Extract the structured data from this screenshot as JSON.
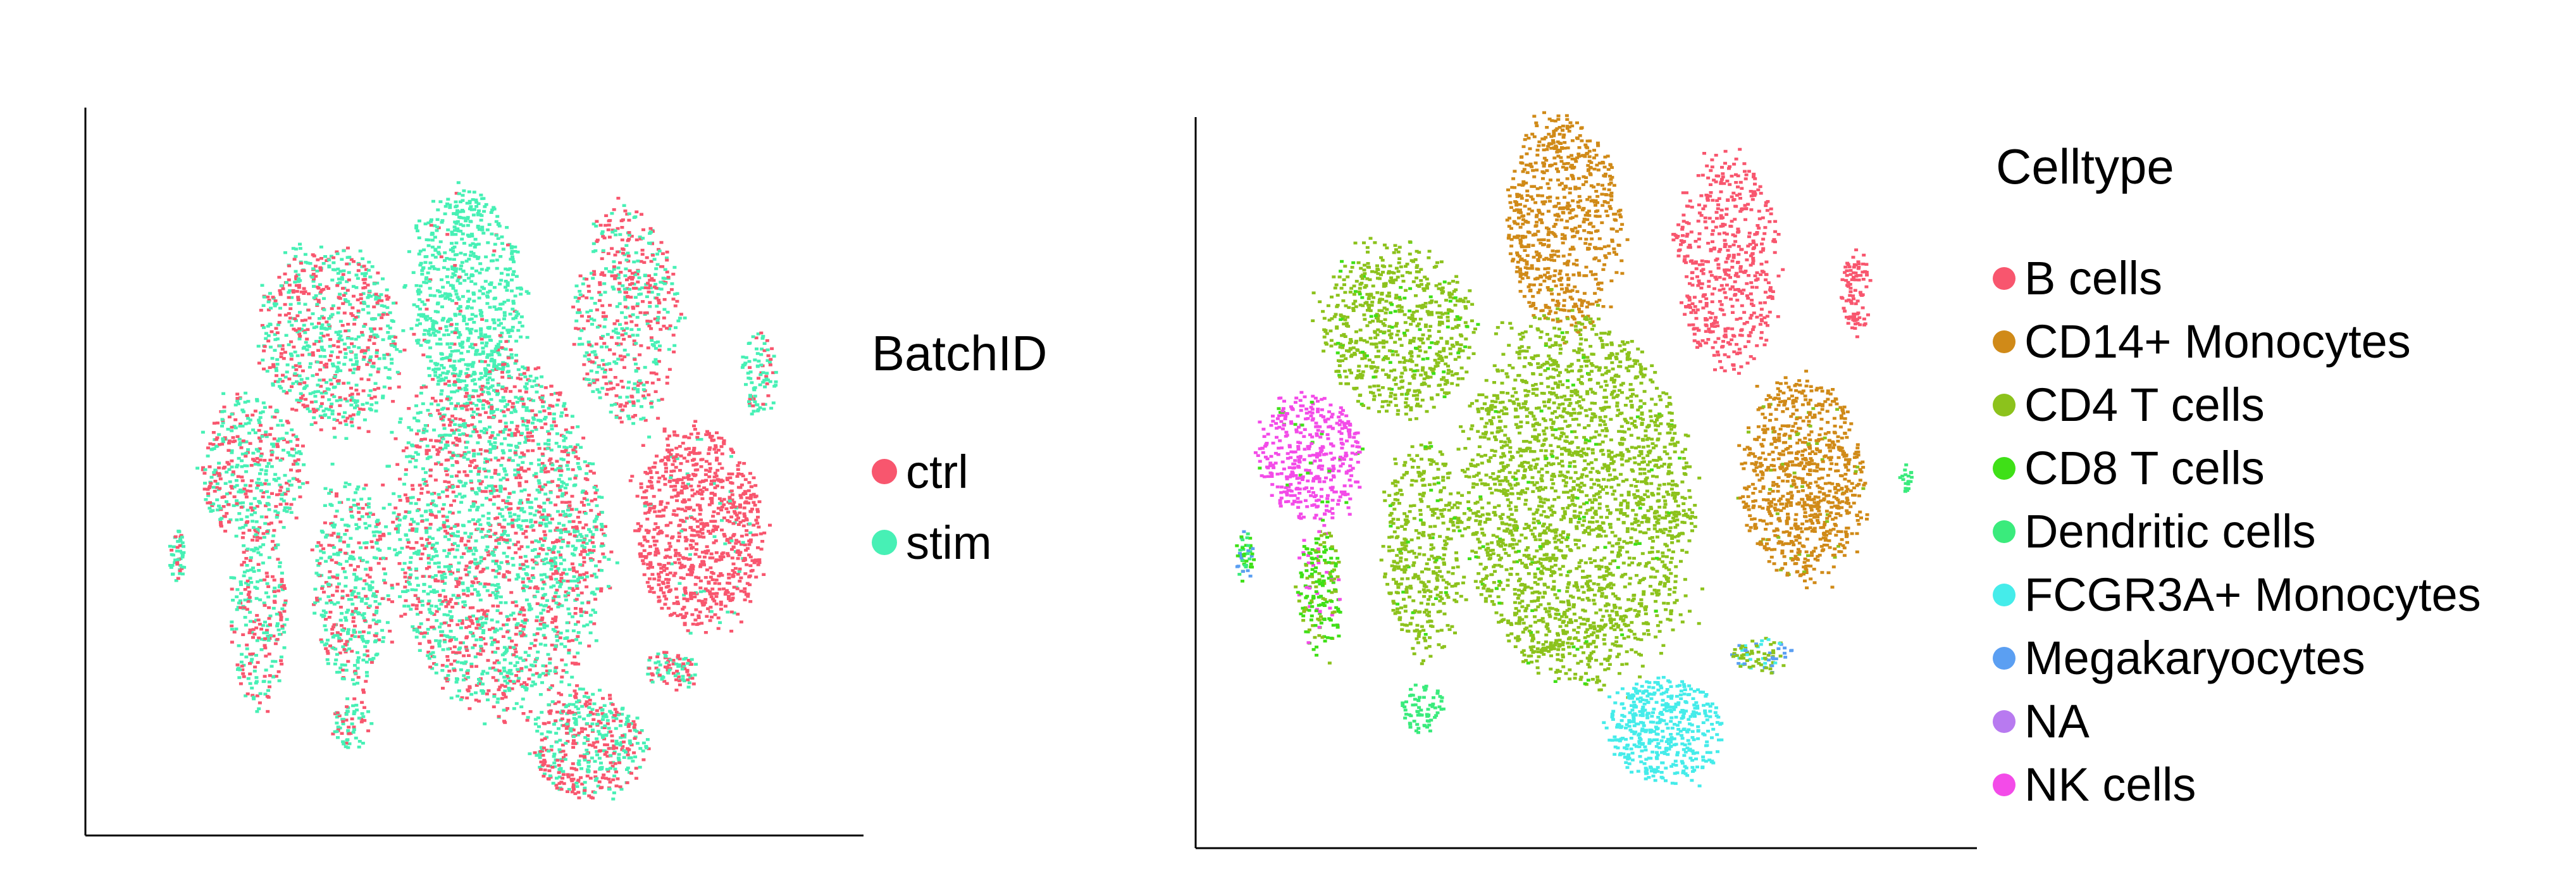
{
  "chart_data": [
    {
      "type": "scatter",
      "title": "",
      "xlabel": "",
      "ylabel": "",
      "legend": {
        "title": "BatchID",
        "placement": "right",
        "entries": [
          {
            "name": "ctrl",
            "color": "#F8566E"
          },
          {
            "name": "stim",
            "color": "#47F0B5"
          }
        ]
      },
      "grid": false,
      "clusters": [
        {
          "name": "",
          "center": [
            0.495,
            0.27
          ],
          "spread": [
            0.08,
            0.15
          ],
          "points": 700,
          "mix": {
            "stim": 0.96,
            "ctrl": 0.04
          }
        },
        {
          "name": "",
          "center": [
            0.3,
            0.325
          ],
          "spread": [
            0.1,
            0.13
          ],
          "points": 720,
          "mix": {
            "stim": 0.58,
            "ctrl": 0.42
          }
        },
        {
          "name": "",
          "center": [
            0.725,
            0.295
          ],
          "spread": [
            0.075,
            0.15
          ],
          "points": 520,
          "mix": {
            "stim": 0.48,
            "ctrl": 0.52
          }
        },
        {
          "name": "",
          "center": [
            0.915,
            0.38
          ],
          "spread": [
            0.025,
            0.06
          ],
          "points": 90,
          "mix": {
            "stim": 0.85,
            "ctrl": 0.15
          }
        },
        {
          "name": "",
          "center": [
            0.185,
            0.51
          ],
          "spread": [
            0.075,
            0.1
          ],
          "points": 420,
          "mix": {
            "stim": 0.55,
            "ctrl": 0.45
          }
        },
        {
          "name": "",
          "center": [
            0.54,
            0.605
          ],
          "spread": [
            0.15,
            0.25
          ],
          "points": 2200,
          "mix": {
            "stim": 0.58,
            "ctrl": 0.42
          }
        },
        {
          "name": "",
          "center": [
            0.83,
            0.6
          ],
          "spread": [
            0.09,
            0.14
          ],
          "points": 850,
          "mix": {
            "stim": 0.05,
            "ctrl": 0.95
          }
        },
        {
          "name": "",
          "center": [
            0.33,
            0.675
          ],
          "spread": [
            0.055,
            0.15
          ],
          "points": 420,
          "mix": {
            "stim": 0.62,
            "ctrl": 0.38
          }
        },
        {
          "name": "",
          "center": [
            0.195,
            0.72
          ],
          "spread": [
            0.04,
            0.13
          ],
          "points": 260,
          "mix": {
            "stim": 0.6,
            "ctrl": 0.4
          }
        },
        {
          "name": "",
          "center": [
            0.08,
            0.635
          ],
          "spread": [
            0.012,
            0.035
          ],
          "points": 50,
          "mix": {
            "stim": 0.85,
            "ctrl": 0.15
          }
        },
        {
          "name": "",
          "center": [
            0.79,
            0.8
          ],
          "spread": [
            0.04,
            0.025
          ],
          "points": 90,
          "mix": {
            "stim": 0.55,
            "ctrl": 0.45
          }
        },
        {
          "name": "",
          "center": [
            0.67,
            0.905
          ],
          "spread": [
            0.08,
            0.075
          ],
          "points": 450,
          "mix": {
            "stim": 0.55,
            "ctrl": 0.45
          }
        },
        {
          "name": "",
          "center": [
            0.33,
            0.875
          ],
          "spread": [
            0.028,
            0.035
          ],
          "points": 70,
          "mix": {
            "stim": 0.7,
            "ctrl": 0.3
          }
        }
      ]
    },
    {
      "type": "scatter",
      "title": "",
      "xlabel": "",
      "ylabel": "",
      "legend": {
        "title": "Celltype",
        "placement": "right",
        "entries": [
          {
            "name": "B cells",
            "color": "#F8566E"
          },
          {
            "name": "CD14+ Monocytes",
            "color": "#D08A18"
          },
          {
            "name": "CD4 T cells",
            "color": "#8CC21C"
          },
          {
            "name": "CD8 T cells",
            "color": "#3FE017"
          },
          {
            "name": "Dendritic cells",
            "color": "#3AEB7C"
          },
          {
            "name": "FCGR3A+ Monocytes",
            "color": "#45ECEA"
          },
          {
            "name": "Megakaryocytes",
            "color": "#5B9FF2"
          },
          {
            "name": "NA",
            "color": "#B87AF0"
          },
          {
            "name": "NK cells",
            "color": "#F34BE8"
          }
        ]
      },
      "grid": false,
      "clusters": [
        {
          "name": "",
          "center": [
            0.485,
            0.17
          ],
          "spread": [
            0.08,
            0.15
          ],
          "points": 700,
          "mix": {
            "CD14+ Monocytes": 1.0
          }
        },
        {
          "name": "",
          "center": [
            0.255,
            0.32
          ],
          "spread": [
            0.105,
            0.12
          ],
          "points": 700,
          "mix": {
            "CD4 T cells": 0.92,
            "CD8 T cells": 0.08
          }
        },
        {
          "name": "",
          "center": [
            0.715,
            0.225
          ],
          "spread": [
            0.07,
            0.15
          ],
          "points": 520,
          "mix": {
            "B cells": 1.0
          }
        },
        {
          "name": "",
          "center": [
            0.895,
            0.265
          ],
          "spread": [
            0.02,
            0.06
          ],
          "points": 90,
          "mix": {
            "B cells": 1.0
          }
        },
        {
          "name": "",
          "center": [
            0.13,
            0.5
          ],
          "spread": [
            0.07,
            0.09
          ],
          "points": 420,
          "mix": {
            "NK cells": 0.95,
            "CD8 T cells": 0.05
          }
        },
        {
          "name": "",
          "center": [
            0.145,
            0.69
          ],
          "spread": [
            0.03,
            0.09
          ],
          "points": 200,
          "mix": {
            "CD8 T cells": 0.55,
            "CD4 T cells": 0.3,
            "NK cells": 0.15
          }
        },
        {
          "name": "",
          "center": [
            0.505,
            0.56
          ],
          "spread": [
            0.155,
            0.255
          ],
          "points": 2300,
          "mix": {
            "CD4 T cells": 0.97,
            "CD8 T cells": 0.03
          }
        },
        {
          "name": "",
          "center": [
            0.82,
            0.53
          ],
          "spread": [
            0.085,
            0.14
          ],
          "points": 820,
          "mix": {
            "CD14+ Monocytes": 0.95,
            "CD4 T cells": 0.05
          }
        },
        {
          "name": "",
          "center": [
            0.29,
            0.63
          ],
          "spread": [
            0.055,
            0.15
          ],
          "points": 420,
          "mix": {
            "CD4 T cells": 0.95,
            "CD8 T cells": 0.05
          }
        },
        {
          "name": "",
          "center": [
            0.04,
            0.64
          ],
          "spread": [
            0.012,
            0.035
          ],
          "points": 50,
          "mix": {
            "CD8 T cells": 0.5,
            "Dendritic cells": 0.3,
            "Megakaryocytes": 0.2
          }
        },
        {
          "name": "",
          "center": [
            0.765,
            0.78
          ],
          "spread": [
            0.04,
            0.025
          ],
          "points": 90,
          "mix": {
            "CD4 T cells": 0.5,
            "Megakaryocytes": 0.3,
            "FCGR3A+ Monocytes": 0.2
          }
        },
        {
          "name": "",
          "center": [
            0.63,
            0.885
          ],
          "spread": [
            0.08,
            0.075
          ],
          "points": 450,
          "mix": {
            "FCGR3A+ Monocytes": 1.0
          }
        },
        {
          "name": "",
          "center": [
            0.29,
            0.855
          ],
          "spread": [
            0.03,
            0.035
          ],
          "points": 70,
          "mix": {
            "Dendritic cells": 1.0
          }
        },
        {
          "name": "",
          "center": [
            0.965,
            0.53
          ],
          "spread": [
            0.01,
            0.02
          ],
          "points": 20,
          "mix": {
            "Dendritic cells": 1.0
          }
        }
      ]
    }
  ]
}
